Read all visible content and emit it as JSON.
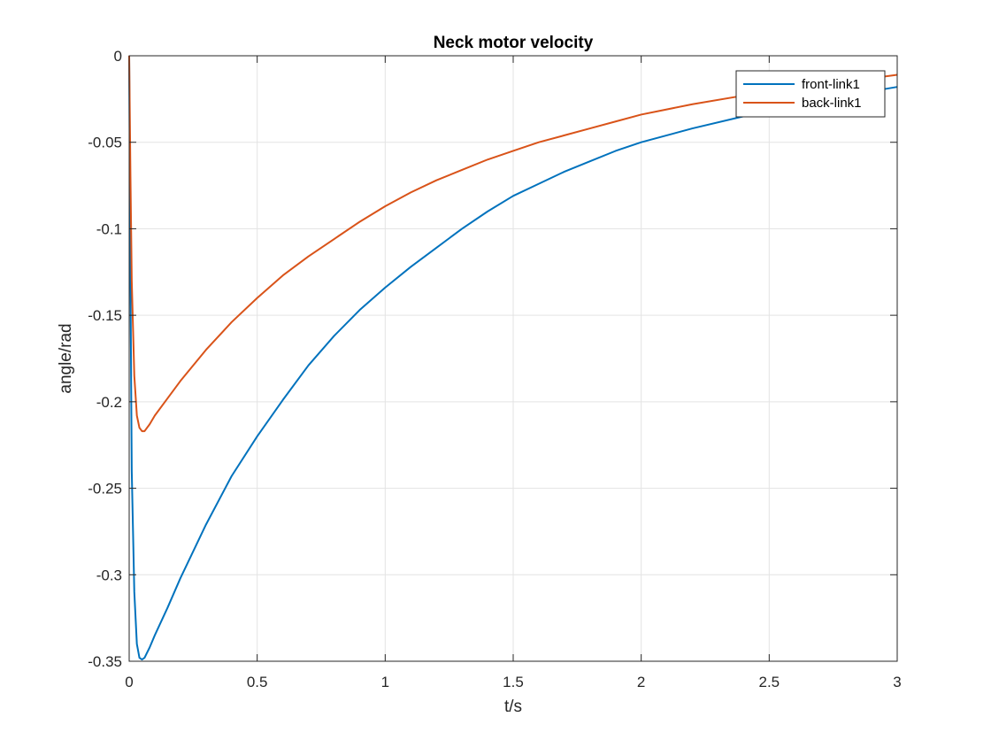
{
  "chart_data": {
    "type": "line",
    "title": "Neck motor velocity",
    "xlabel": "t/s",
    "ylabel": "angle/rad",
    "xlim": [
      0,
      3
    ],
    "ylim": [
      -0.35,
      0
    ],
    "xticks": [
      0,
      0.5,
      1,
      1.5,
      2,
      2.5,
      3
    ],
    "xtick_labels": [
      "0",
      "0.5",
      "1",
      "1.5",
      "2",
      "2.5",
      "3"
    ],
    "yticks": [
      0,
      -0.05,
      -0.1,
      -0.15,
      -0.2,
      -0.25,
      -0.3,
      -0.35
    ],
    "ytick_labels": [
      "0",
      "-0.05",
      "-0.1",
      "-0.15",
      "-0.2",
      "-0.25",
      "-0.3",
      "-0.35"
    ],
    "grid": true,
    "legend_position": "top-right",
    "series": [
      {
        "name": "front-link1",
        "color": "#0072BD",
        "points": [
          [
            0,
            0
          ],
          [
            0.005,
            -0.13
          ],
          [
            0.01,
            -0.24
          ],
          [
            0.02,
            -0.31
          ],
          [
            0.03,
            -0.34
          ],
          [
            0.04,
            -0.348
          ],
          [
            0.05,
            -0.349
          ],
          [
            0.06,
            -0.348
          ],
          [
            0.08,
            -0.342
          ],
          [
            0.1,
            -0.335
          ],
          [
            0.15,
            -0.319
          ],
          [
            0.2,
            -0.302
          ],
          [
            0.3,
            -0.271
          ],
          [
            0.4,
            -0.243
          ],
          [
            0.5,
            -0.22
          ],
          [
            0.6,
            -0.199
          ],
          [
            0.7,
            -0.179
          ],
          [
            0.8,
            -0.162
          ],
          [
            0.9,
            -0.147
          ],
          [
            1.0,
            -0.134
          ],
          [
            1.1,
            -0.122
          ],
          [
            1.2,
            -0.111
          ],
          [
            1.3,
            -0.1
          ],
          [
            1.4,
            -0.09
          ],
          [
            1.5,
            -0.081
          ],
          [
            1.6,
            -0.074
          ],
          [
            1.7,
            -0.067
          ],
          [
            1.8,
            -0.061
          ],
          [
            1.9,
            -0.055
          ],
          [
            2.0,
            -0.05
          ],
          [
            2.2,
            -0.042
          ],
          [
            2.4,
            -0.035
          ],
          [
            2.6,
            -0.029
          ],
          [
            2.8,
            -0.023
          ],
          [
            3.0,
            -0.018
          ]
        ]
      },
      {
        "name": "back-link1",
        "color": "#D95319",
        "points": [
          [
            0,
            0
          ],
          [
            0.005,
            -0.07
          ],
          [
            0.01,
            -0.13
          ],
          [
            0.02,
            -0.185
          ],
          [
            0.03,
            -0.208
          ],
          [
            0.04,
            -0.215
          ],
          [
            0.05,
            -0.217
          ],
          [
            0.06,
            -0.217
          ],
          [
            0.08,
            -0.213
          ],
          [
            0.1,
            -0.208
          ],
          [
            0.15,
            -0.198
          ],
          [
            0.2,
            -0.188
          ],
          [
            0.3,
            -0.17
          ],
          [
            0.4,
            -0.154
          ],
          [
            0.5,
            -0.14
          ],
          [
            0.6,
            -0.127
          ],
          [
            0.7,
            -0.116
          ],
          [
            0.8,
            -0.106
          ],
          [
            0.9,
            -0.096
          ],
          [
            1.0,
            -0.087
          ],
          [
            1.1,
            -0.079
          ],
          [
            1.2,
            -0.072
          ],
          [
            1.3,
            -0.066
          ],
          [
            1.4,
            -0.06
          ],
          [
            1.5,
            -0.055
          ],
          [
            1.6,
            -0.05
          ],
          [
            1.7,
            -0.046
          ],
          [
            1.8,
            -0.042
          ],
          [
            1.9,
            -0.038
          ],
          [
            2.0,
            -0.034
          ],
          [
            2.2,
            -0.028
          ],
          [
            2.4,
            -0.023
          ],
          [
            2.6,
            -0.019
          ],
          [
            2.8,
            -0.015
          ],
          [
            3.0,
            -0.011
          ]
        ]
      }
    ]
  }
}
